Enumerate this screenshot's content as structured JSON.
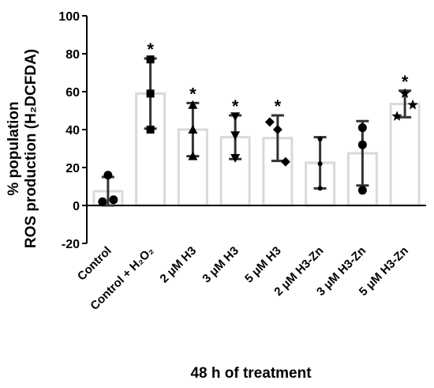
{
  "chart_data": {
    "type": "bar",
    "title": "",
    "xlabel": "48 h of treatment",
    "ylabel_line1": "% population",
    "ylabel_line2": "ROS production (H₂DCFDA)",
    "ylim": [
      -20,
      100
    ],
    "yticks": [
      -20,
      0,
      20,
      40,
      60,
      80,
      100
    ],
    "grid": false,
    "legend": "none",
    "colors": {
      "bar_stroke": "#d9d9d9",
      "error_bar": "#333333",
      "axis": "#000000"
    },
    "categories": [
      "Control",
      "Control + H₂O₂",
      "2 μM H3",
      "3 μM H3",
      "5 μM H3",
      "2 μM H3-Zn",
      "3 μM H3-Zn",
      "5 μM H3-Zn"
    ],
    "values": [
      7.5,
      59,
      40,
      36,
      35.5,
      22.5,
      27.5,
      53.5
    ],
    "error": [
      7.5,
      18.5,
      14,
      11.5,
      12,
      13.5,
      17,
      7
    ],
    "significance": [
      "",
      "*",
      "*",
      "*",
      "*",
      "",
      "",
      "*"
    ],
    "markers": [
      "circle",
      "square",
      "triangle-up",
      "triangle-down",
      "diamond",
      "circle-small",
      "circle",
      "star"
    ],
    "points": [
      [
        2,
        3,
        16
      ],
      [
        77,
        59,
        40
      ],
      [
        53,
        40,
        26
      ],
      [
        47,
        37,
        25
      ],
      [
        44,
        40,
        23
      ],
      [
        35,
        22,
        9
      ],
      [
        41,
        32,
        8
      ],
      [
        53,
        47,
        59
      ]
    ]
  }
}
